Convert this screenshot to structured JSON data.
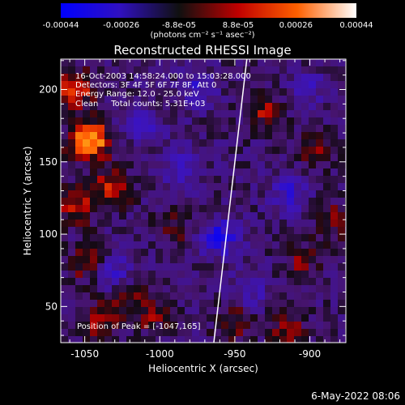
{
  "colorbar": {
    "ticks": [
      "-0.00044",
      "-0.00026",
      "-8.8e-05",
      "8.8e-05",
      "0.00026",
      "0.00044"
    ],
    "tick_values": [
      -0.00044,
      -0.00026,
      -8.8e-05,
      8.8e-05,
      0.00026,
      0.00044
    ],
    "range": [
      -0.00044,
      0.00044
    ],
    "label": "(photons cm⁻² s⁻¹ asec⁻²)",
    "colors": [
      "#0000ff",
      "#3010c0",
      "#101010",
      "#c00000",
      "#ff6000",
      "#ffffff"
    ]
  },
  "annotations": {
    "time_range": "16-Oct-2003 14:58:24.000 to 15:03:28.000",
    "detectors": "Detectors: 3F 4F 5F 6F 7F 8F, Att 0",
    "energy": "Energy Range: 12.0 - 25.0 keV",
    "clean": "Clean     Total counts: 5.31E+03",
    "peak": "Position of Peak = [-1047,165]"
  },
  "date_stamp": "6-May-2022 08:06",
  "chart_data": {
    "type": "heatmap",
    "title": "Reconstructed RHESSI Image",
    "xlabel": "Heliocentric X (arcsec)",
    "ylabel": "Heliocentric Y (arcsec)",
    "xlim": [
      -1066,
      -876
    ],
    "ylim": [
      25,
      221
    ],
    "xticks": [
      -1050,
      -1000,
      -950,
      -900
    ],
    "yticks": [
      50,
      100,
      150,
      200
    ],
    "limb_line": [
      [
        -964,
        25
      ],
      [
        -942,
        221
      ]
    ],
    "peak": [
      -1047,
      165
    ],
    "hot_spots": [
      {
        "x": -1047,
        "y": 165,
        "v": 0.00044
      },
      {
        "x": -1058,
        "y": 200,
        "v": 0.0003
      },
      {
        "x": -1032,
        "y": 132,
        "v": 0.00022
      },
      {
        "x": -1056,
        "y": 120,
        "v": 0.0002
      },
      {
        "x": -1048,
        "y": 80,
        "v": 0.00018
      },
      {
        "x": -1020,
        "y": 60,
        "v": 0.00016
      },
      {
        "x": -1040,
        "y": 40,
        "v": 0.00018
      },
      {
        "x": -1005,
        "y": 45,
        "v": 0.00014
      },
      {
        "x": -950,
        "y": 40,
        "v": 0.00015
      },
      {
        "x": -930,
        "y": 185,
        "v": 0.00016
      },
      {
        "x": -895,
        "y": 160,
        "v": 0.00014
      },
      {
        "x": -905,
        "y": 80,
        "v": 0.00012
      },
      {
        "x": -885,
        "y": 110,
        "v": 0.00012
      },
      {
        "x": -990,
        "y": 105,
        "v": 0.0001
      },
      {
        "x": -915,
        "y": 35,
        "v": 0.00014
      }
    ],
    "cold_spots": [
      {
        "x": -960,
        "y": 98,
        "v": -0.00026
      },
      {
        "x": -1030,
        "y": 72,
        "v": -0.00022
      },
      {
        "x": -985,
        "y": 145,
        "v": -0.00018
      },
      {
        "x": -915,
        "y": 128,
        "v": -0.00018
      },
      {
        "x": -975,
        "y": 200,
        "v": -0.00016
      },
      {
        "x": -940,
        "y": 60,
        "v": -0.00016
      },
      {
        "x": -1010,
        "y": 175,
        "v": -0.00014
      },
      {
        "x": -900,
        "y": 200,
        "v": -0.00012
      }
    ]
  }
}
